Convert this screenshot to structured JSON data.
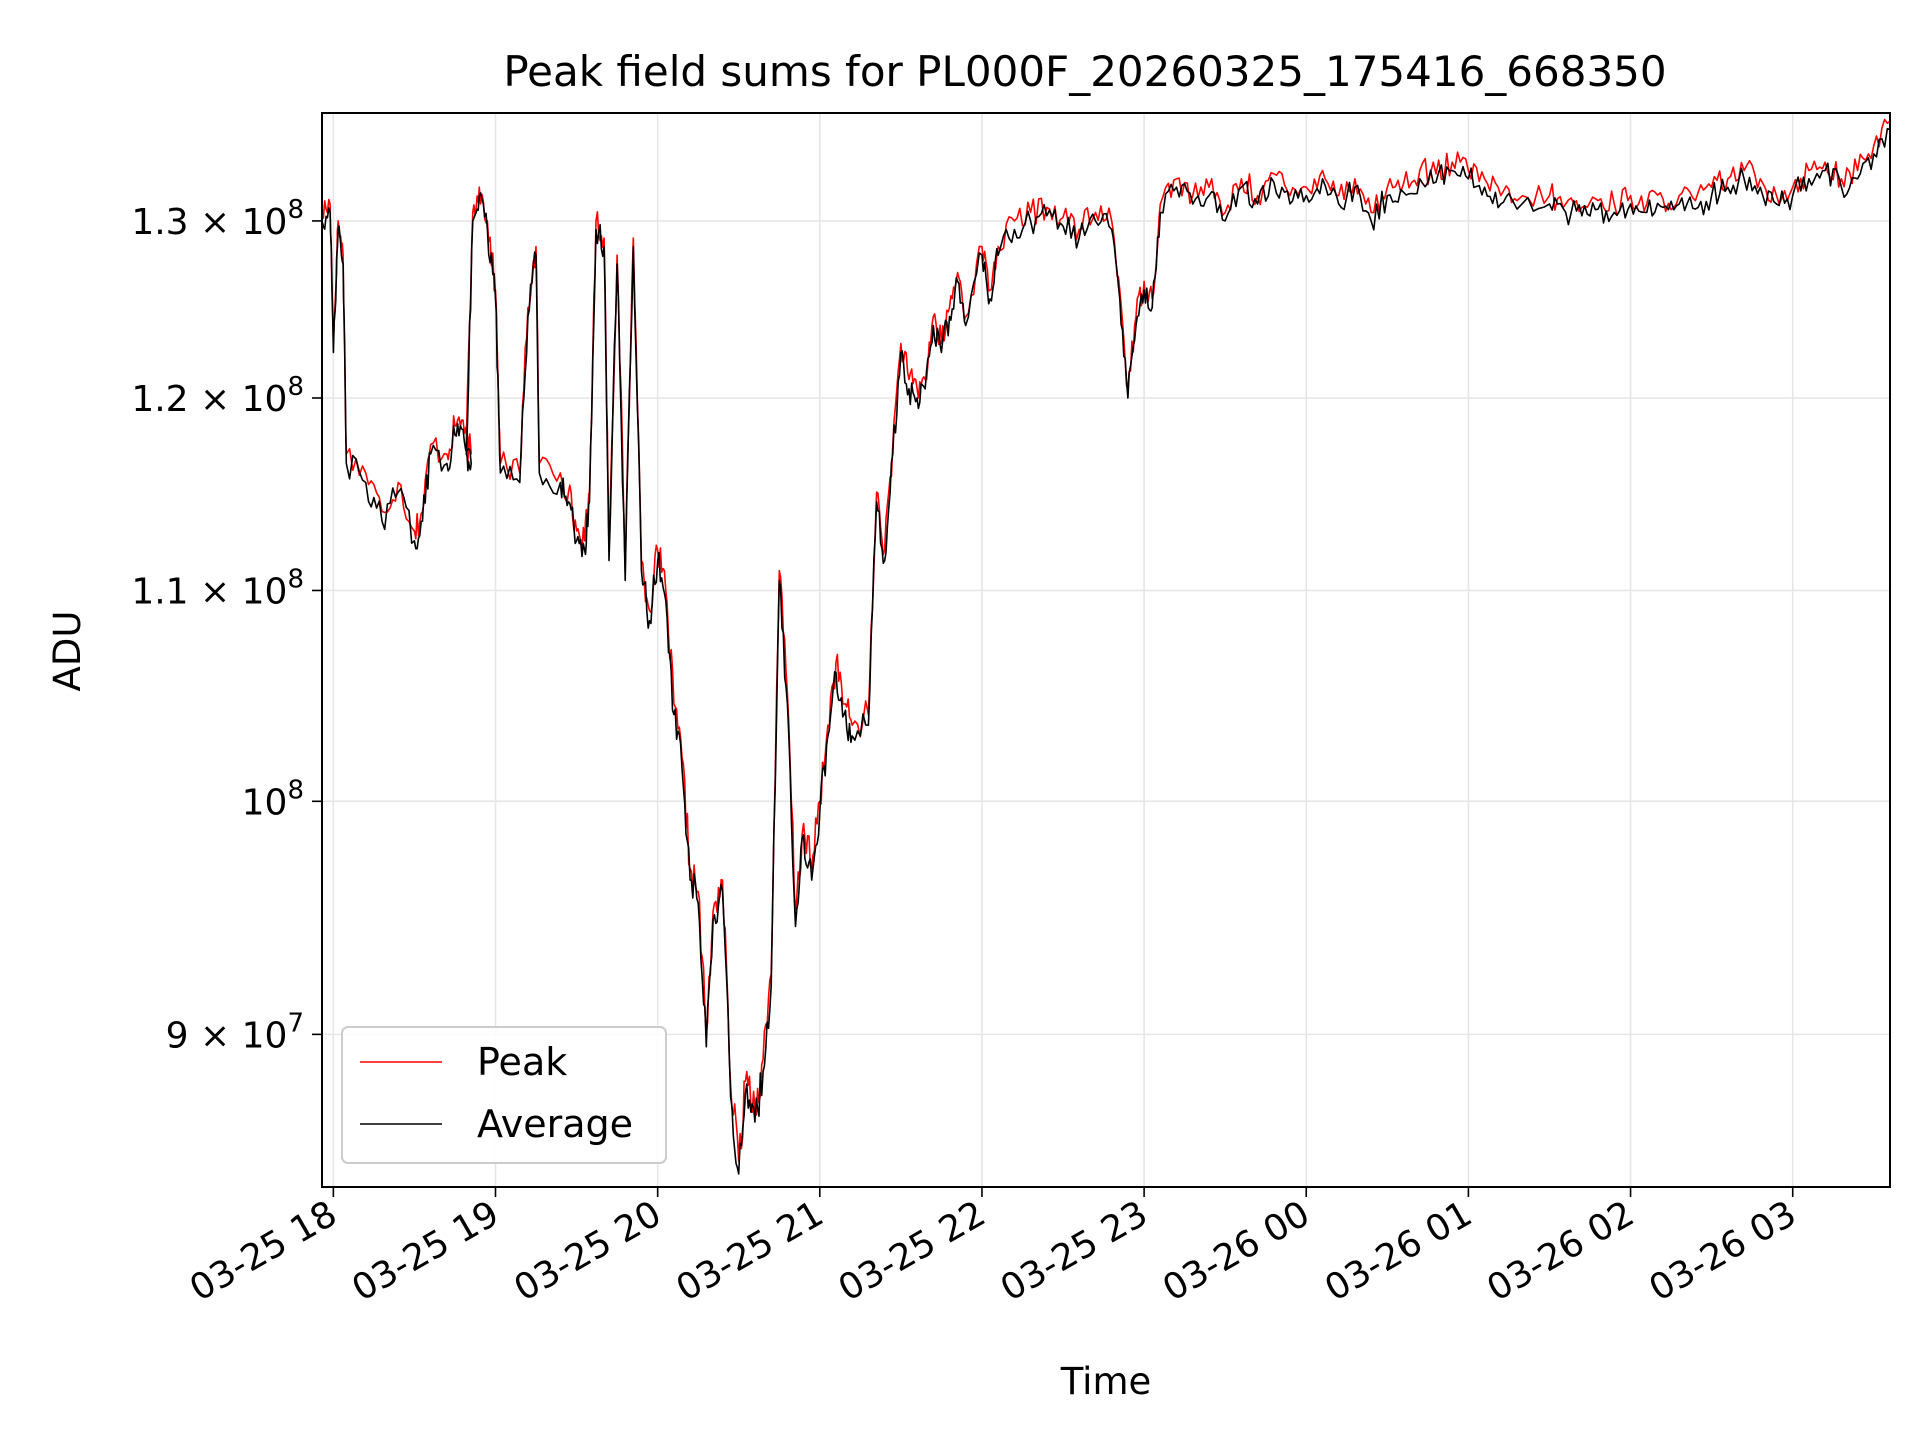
{
  "chart_data": {
    "type": "line",
    "title": "Peak field sums for PL000F_20260325_175416_668350",
    "xlabel": "Time",
    "ylabel": "ADU",
    "yscale": "log",
    "grid": true,
    "legend_position": "lower-left",
    "x_unit": "hours since 03-25 18:00",
    "xlim": [
      -0.07,
      9.6
    ],
    "ylim": [
      84000000,
      136500000
    ],
    "x_ticks": [
      {
        "value": 0,
        "label": "03-25 18"
      },
      {
        "value": 1,
        "label": "03-25 19"
      },
      {
        "value": 2,
        "label": "03-25 20"
      },
      {
        "value": 3,
        "label": "03-25 21"
      },
      {
        "value": 4,
        "label": "03-25 22"
      },
      {
        "value": 5,
        "label": "03-25 23"
      },
      {
        "value": 6,
        "label": "03-26 00"
      },
      {
        "value": 7,
        "label": "03-26 01"
      },
      {
        "value": 8,
        "label": "03-26 02"
      },
      {
        "value": 9,
        "label": "03-26 03"
      }
    ],
    "y_ticks": [
      {
        "value": 90000000,
        "mantissa": "9",
        "exponent": "7"
      },
      {
        "value": 100000000,
        "mantissa": "",
        "exponent": "8"
      },
      {
        "value": 110000000,
        "mantissa": "1.1",
        "exponent": "8"
      },
      {
        "value": 120000000,
        "mantissa": "1.2",
        "exponent": "8"
      },
      {
        "value": 130000000,
        "mantissa": "1.3",
        "exponent": "8"
      }
    ],
    "tick_times_symbol": "×",
    "tick_base": "10",
    "series": [
      {
        "name": "Peak",
        "color": "#ff0000",
        "anchors": [
          [
            -0.07,
            130.5
          ],
          [
            -0.02,
            131.0
          ],
          [
            0.0,
            123.0
          ],
          [
            0.03,
            130.0
          ],
          [
            0.06,
            128.0
          ],
          [
            0.08,
            117.0
          ],
          [
            0.2,
            116.0
          ],
          [
            0.3,
            114.0
          ],
          [
            0.4,
            115.5
          ],
          [
            0.5,
            113.0
          ],
          [
            0.55,
            114.0
          ],
          [
            0.6,
            117.5
          ],
          [
            0.7,
            117.0
          ],
          [
            0.75,
            118.5
          ],
          [
            0.8,
            118.8
          ],
          [
            0.85,
            117.0
          ],
          [
            0.82,
            117.5
          ],
          [
            0.86,
            130.5
          ],
          [
            0.9,
            132.0
          ],
          [
            0.95,
            130.0
          ],
          [
            1.0,
            126.0
          ],
          [
            1.03,
            116.5
          ],
          [
            1.15,
            116.0
          ],
          [
            1.2,
            125.0
          ],
          [
            1.25,
            128.5
          ],
          [
            1.27,
            116.5
          ],
          [
            1.4,
            116.0
          ],
          [
            1.45,
            115.0
          ],
          [
            1.5,
            113.0
          ],
          [
            1.55,
            112.5
          ],
          [
            1.58,
            115.0
          ],
          [
            1.62,
            130.0
          ],
          [
            1.67,
            129.0
          ],
          [
            1.7,
            112.0
          ],
          [
            1.75,
            128.0
          ],
          [
            1.8,
            111.0
          ],
          [
            1.85,
            129.0
          ],
          [
            1.9,
            111.5
          ],
          [
            1.95,
            109.0
          ],
          [
            2.0,
            112.0
          ],
          [
            2.05,
            110.0
          ],
          [
            2.1,
            104.5
          ],
          [
            2.15,
            102.0
          ],
          [
            2.2,
            97.0
          ],
          [
            2.25,
            96.0
          ],
          [
            2.3,
            90.0
          ],
          [
            2.35,
            95.5
          ],
          [
            2.4,
            96.5
          ],
          [
            2.45,
            88.0
          ],
          [
            2.5,
            85.0
          ],
          [
            2.55,
            88.5
          ],
          [
            2.6,
            87.0
          ],
          [
            2.65,
            89.0
          ],
          [
            2.7,
            92.5
          ],
          [
            2.75,
            111.0
          ],
          [
            2.8,
            105.0
          ],
          [
            2.85,
            95.0
          ],
          [
            2.9,
            99.0
          ],
          [
            2.95,
            97.0
          ],
          [
            3.0,
            100.0
          ],
          [
            3.05,
            103.5
          ],
          [
            3.1,
            106.5
          ],
          [
            3.15,
            104.5
          ],
          [
            3.2,
            103.5
          ],
          [
            3.3,
            104.0
          ],
          [
            3.35,
            115.0
          ],
          [
            3.4,
            112.0
          ],
          [
            3.45,
            117.5
          ],
          [
            3.5,
            123.0
          ],
          [
            3.55,
            121.0
          ],
          [
            3.6,
            120.5
          ],
          [
            3.65,
            121.0
          ],
          [
            3.7,
            124.5
          ],
          [
            3.75,
            123.0
          ],
          [
            3.8,
            125.0
          ],
          [
            3.85,
            127.0
          ],
          [
            3.9,
            124.5
          ],
          [
            4.0,
            128.5
          ],
          [
            4.05,
            126.0
          ],
          [
            4.1,
            128.5
          ],
          [
            4.2,
            130.0
          ],
          [
            4.3,
            130.5
          ],
          [
            4.4,
            130.8
          ],
          [
            4.5,
            130.2
          ],
          [
            4.6,
            129.5
          ],
          [
            4.7,
            130.5
          ],
          [
            4.8,
            130.0
          ],
          [
            4.85,
            126.0
          ],
          [
            4.9,
            120.5
          ],
          [
            4.95,
            124.5
          ],
          [
            5.0,
            126.5
          ],
          [
            5.05,
            125.5
          ],
          [
            5.1,
            131.0
          ],
          [
            5.2,
            132.5
          ],
          [
            5.3,
            131.5
          ],
          [
            5.4,
            132.0
          ],
          [
            5.5,
            130.5
          ],
          [
            5.6,
            132.5
          ],
          [
            5.7,
            131.5
          ],
          [
            5.8,
            132.8
          ],
          [
            5.9,
            131.5
          ],
          [
            6.0,
            132.0
          ],
          [
            6.1,
            133.0
          ],
          [
            6.2,
            131.5
          ],
          [
            6.3,
            132.5
          ],
          [
            6.4,
            130.5
          ],
          [
            6.5,
            132.0
          ],
          [
            6.6,
            132.2
          ],
          [
            6.7,
            133.0
          ],
          [
            6.8,
            132.8
          ],
          [
            6.9,
            133.5
          ],
          [
            7.0,
            133.0
          ],
          [
            7.1,
            132.5
          ],
          [
            7.2,
            131.5
          ],
          [
            7.3,
            131.2
          ],
          [
            7.5,
            131.5
          ],
          [
            7.6,
            131.0
          ],
          [
            7.7,
            130.8
          ],
          [
            7.8,
            131.2
          ],
          [
            7.9,
            131.0
          ],
          [
            8.0,
            131.5
          ],
          [
            8.1,
            131.0
          ],
          [
            8.2,
            131.3
          ],
          [
            8.3,
            131.5
          ],
          [
            8.4,
            131.2
          ],
          [
            8.5,
            132.0
          ],
          [
            8.6,
            132.5
          ],
          [
            8.7,
            133.0
          ],
          [
            8.8,
            132.5
          ],
          [
            8.9,
            131.5
          ],
          [
            9.0,
            132.0
          ],
          [
            9.1,
            133.0
          ],
          [
            9.2,
            133.5
          ],
          [
            9.3,
            132.5
          ],
          [
            9.4,
            133.0
          ],
          [
            9.5,
            134.5
          ],
          [
            9.6,
            136.0
          ]
        ]
      },
      {
        "name": "Average",
        "color": "#000000",
        "anchors": [
          [
            -0.07,
            130.0
          ],
          [
            -0.02,
            130.5
          ],
          [
            0.0,
            122.5
          ],
          [
            0.03,
            129.5
          ],
          [
            0.06,
            127.5
          ],
          [
            0.08,
            116.5
          ],
          [
            0.2,
            115.5
          ],
          [
            0.3,
            113.5
          ],
          [
            0.4,
            115.0
          ],
          [
            0.5,
            112.5
          ],
          [
            0.55,
            113.5
          ],
          [
            0.6,
            117.0
          ],
          [
            0.7,
            116.5
          ],
          [
            0.75,
            118.0
          ],
          [
            0.8,
            118.3
          ],
          [
            0.85,
            116.5
          ],
          [
            0.82,
            117.0
          ],
          [
            0.86,
            130.0
          ],
          [
            0.9,
            131.5
          ],
          [
            0.95,
            129.5
          ],
          [
            1.0,
            125.5
          ],
          [
            1.03,
            116.0
          ],
          [
            1.15,
            115.5
          ],
          [
            1.2,
            124.5
          ],
          [
            1.25,
            128.0
          ],
          [
            1.27,
            116.0
          ],
          [
            1.4,
            115.5
          ],
          [
            1.45,
            114.5
          ],
          [
            1.5,
            112.5
          ],
          [
            1.55,
            112.0
          ],
          [
            1.58,
            114.5
          ],
          [
            1.62,
            129.5
          ],
          [
            1.67,
            128.5
          ],
          [
            1.7,
            111.5
          ],
          [
            1.75,
            127.5
          ],
          [
            1.8,
            110.5
          ],
          [
            1.85,
            128.5
          ],
          [
            1.9,
            111.0
          ],
          [
            1.95,
            108.5
          ],
          [
            2.0,
            111.5
          ],
          [
            2.05,
            109.5
          ],
          [
            2.1,
            104.0
          ],
          [
            2.15,
            101.5
          ],
          [
            2.2,
            96.5
          ],
          [
            2.25,
            95.5
          ],
          [
            2.3,
            89.5
          ],
          [
            2.35,
            95.0
          ],
          [
            2.4,
            96.0
          ],
          [
            2.45,
            87.5
          ],
          [
            2.5,
            84.5
          ],
          [
            2.55,
            88.0
          ],
          [
            2.6,
            86.5
          ],
          [
            2.65,
            88.5
          ],
          [
            2.7,
            92.0
          ],
          [
            2.75,
            110.5
          ],
          [
            2.8,
            104.5
          ],
          [
            2.85,
            94.5
          ],
          [
            2.9,
            98.5
          ],
          [
            2.95,
            96.5
          ],
          [
            3.0,
            99.5
          ],
          [
            3.05,
            103.0
          ],
          [
            3.1,
            106.0
          ],
          [
            3.15,
            104.0
          ],
          [
            3.2,
            103.0
          ],
          [
            3.3,
            103.5
          ],
          [
            3.35,
            114.5
          ],
          [
            3.4,
            111.5
          ],
          [
            3.45,
            117.0
          ],
          [
            3.5,
            122.5
          ],
          [
            3.55,
            120.5
          ],
          [
            3.6,
            120.0
          ],
          [
            3.65,
            120.5
          ],
          [
            3.7,
            124.0
          ],
          [
            3.75,
            122.5
          ],
          [
            3.8,
            124.5
          ],
          [
            3.85,
            126.5
          ],
          [
            3.9,
            124.0
          ],
          [
            4.0,
            128.0
          ],
          [
            4.05,
            125.5
          ],
          [
            4.1,
            128.0
          ],
          [
            4.2,
            129.5
          ],
          [
            4.3,
            130.0
          ],
          [
            4.4,
            130.3
          ],
          [
            4.5,
            129.7
          ],
          [
            4.6,
            129.0
          ],
          [
            4.7,
            130.0
          ],
          [
            4.8,
            129.5
          ],
          [
            4.85,
            125.5
          ],
          [
            4.9,
            120.0
          ],
          [
            4.95,
            124.0
          ],
          [
            5.0,
            126.0
          ],
          [
            5.05,
            125.0
          ],
          [
            5.1,
            130.5
          ],
          [
            5.2,
            132.0
          ],
          [
            5.3,
            131.0
          ],
          [
            5.4,
            131.5
          ],
          [
            5.5,
            130.0
          ],
          [
            5.6,
            132.0
          ],
          [
            5.7,
            131.0
          ],
          [
            5.8,
            132.3
          ],
          [
            5.9,
            131.0
          ],
          [
            6.0,
            131.5
          ],
          [
            6.1,
            132.5
          ],
          [
            6.2,
            131.0
          ],
          [
            6.3,
            132.0
          ],
          [
            6.4,
            130.0
          ],
          [
            6.5,
            131.5
          ],
          [
            6.6,
            131.7
          ],
          [
            6.7,
            132.5
          ],
          [
            6.8,
            132.3
          ],
          [
            6.9,
            133.0
          ],
          [
            7.0,
            132.5
          ],
          [
            7.1,
            132.0
          ],
          [
            7.2,
            131.0
          ],
          [
            7.3,
            130.7
          ],
          [
            7.5,
            131.0
          ],
          [
            7.6,
            130.5
          ],
          [
            7.7,
            130.3
          ],
          [
            7.8,
            130.7
          ],
          [
            7.9,
            130.5
          ],
          [
            8.0,
            131.0
          ],
          [
            8.1,
            130.5
          ],
          [
            8.2,
            130.8
          ],
          [
            8.3,
            131.0
          ],
          [
            8.4,
            130.7
          ],
          [
            8.5,
            131.5
          ],
          [
            8.6,
            132.0
          ],
          [
            8.7,
            132.5
          ],
          [
            8.8,
            132.0
          ],
          [
            8.9,
            131.0
          ],
          [
            9.0,
            131.5
          ],
          [
            9.1,
            132.5
          ],
          [
            9.2,
            133.0
          ],
          [
            9.3,
            132.0
          ],
          [
            9.4,
            132.5
          ],
          [
            9.5,
            134.0
          ],
          [
            9.6,
            135.5
          ]
        ]
      }
    ],
    "anchor_units": "[hours since 03-25 18:00, ADU in millions]"
  }
}
